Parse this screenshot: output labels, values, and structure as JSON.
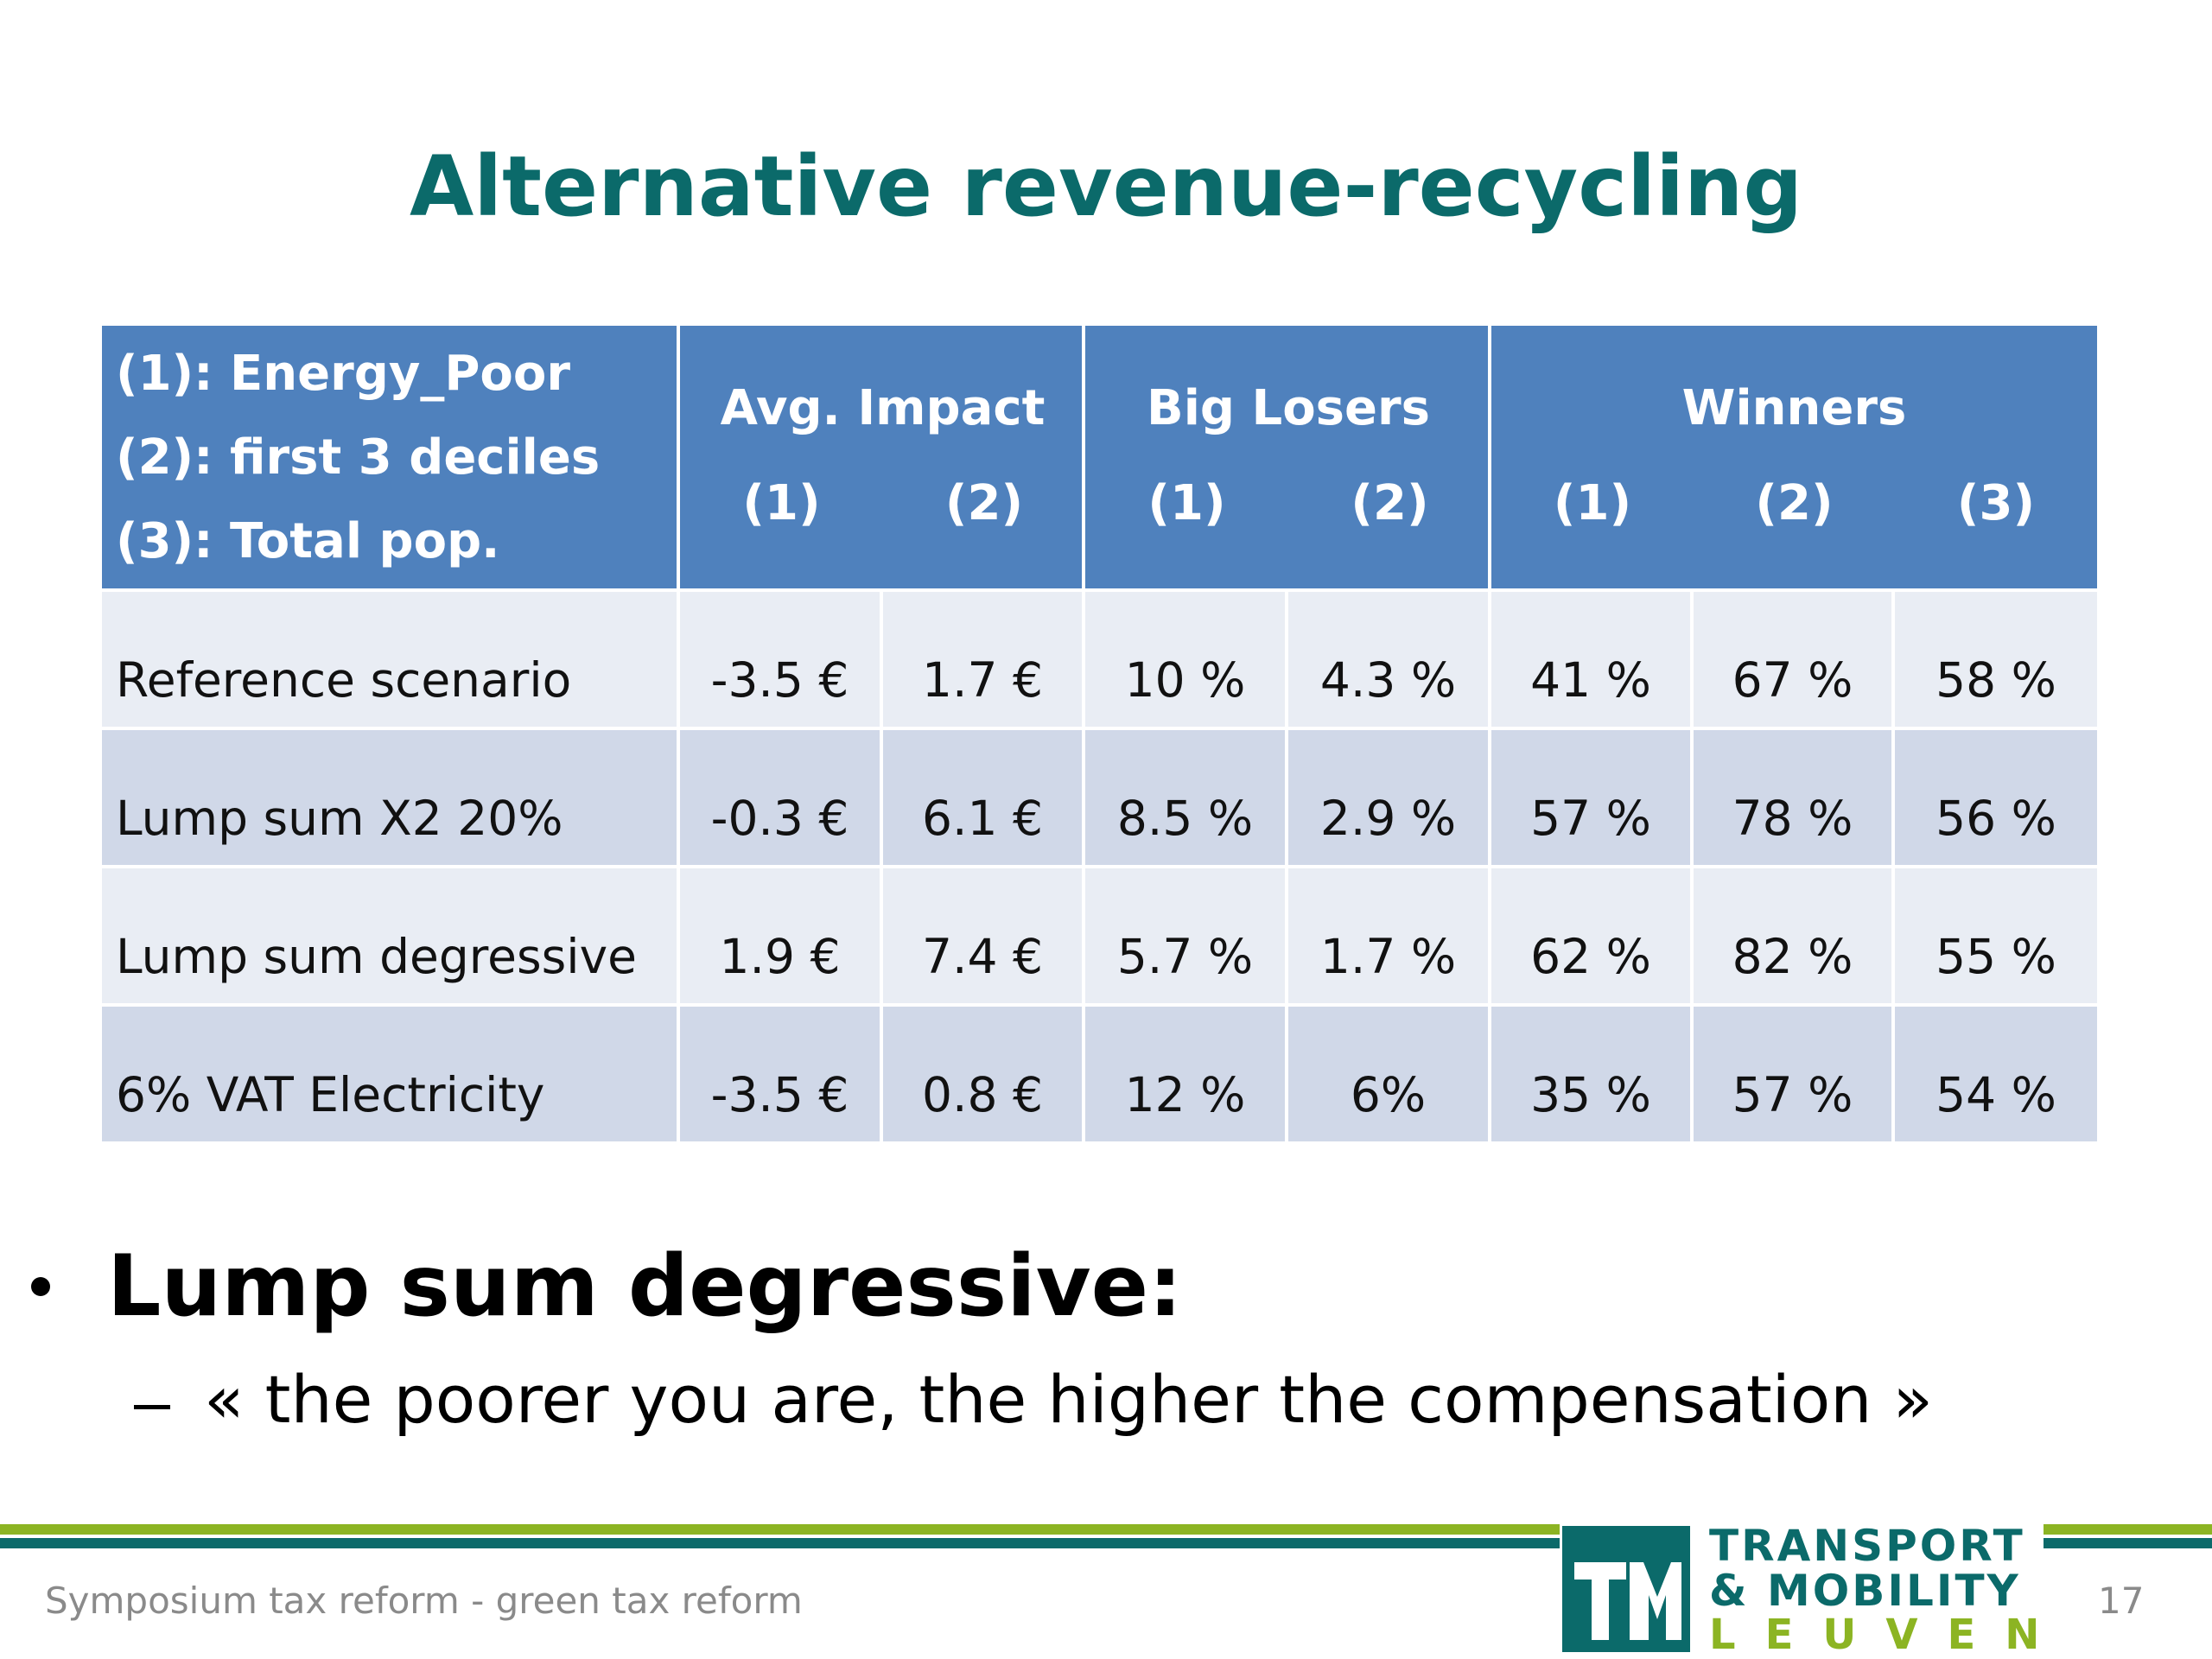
{
  "title": "Alternative revenue-recycling",
  "table": {
    "legend": [
      "(1): Energy_Poor",
      "(2): first 3 deciles",
      "(3): Total pop."
    ],
    "groups": [
      {
        "label": "Avg. Impact",
        "columns": [
          "(1)",
          "(2)"
        ]
      },
      {
        "label": "Big Losers",
        "columns": [
          "(1)",
          "(2)"
        ]
      },
      {
        "label": "Winners",
        "columns": [
          "(1)",
          "(2)",
          "(3)"
        ]
      }
    ],
    "rows": [
      [
        "Reference scenario",
        "-3.5 €",
        "1.7 €",
        "10 %",
        "4.3 %",
        "41 %",
        "67 %",
        "58 %"
      ],
      [
        "Lump sum X2 20%",
        "-0.3 €",
        "6.1 €",
        "8.5 %",
        "2.9 %",
        "57 %",
        "78 %",
        "56 %"
      ],
      [
        "Lump sum degressive",
        "1.9 €",
        "7.4 €",
        "5.7 %",
        "1.7 %",
        "62 %",
        "82 %",
        "55 %"
      ],
      [
        "6% VAT Electricity",
        "-3.5 €",
        "0.8 €",
        "12 %",
        "6%",
        "35 %",
        "57 %",
        "54 %"
      ]
    ]
  },
  "bullet": "Lump sum degressive:",
  "sub_bullet": "« the poorer you are, the higher the compensation »",
  "footer": {
    "text": "Symposium tax reform - green tax reform",
    "page": "17"
  },
  "logo": {
    "lines": [
      "TRANSPORT",
      "& MOBILITY",
      "LEUVEN"
    ]
  }
}
